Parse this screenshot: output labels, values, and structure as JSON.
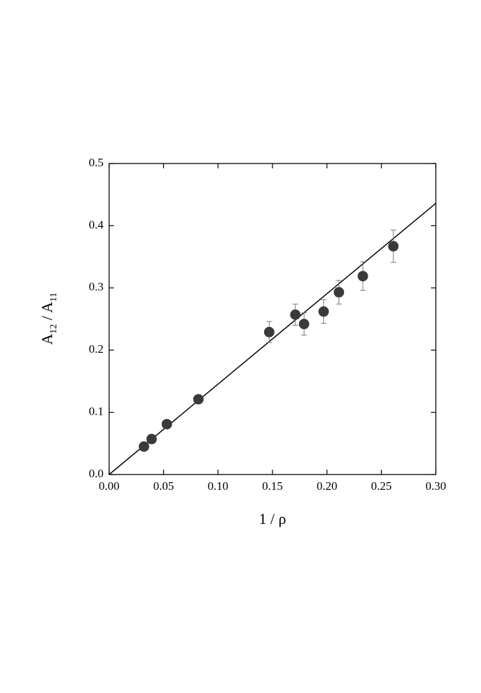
{
  "chart_data": {
    "type": "scatter",
    "x_label": "1 / ρ",
    "y_label": [
      "A",
      "12",
      " / A",
      "11"
    ],
    "xlim": [
      0,
      0.3
    ],
    "ylim": [
      0,
      0.5
    ],
    "xticks": [
      {
        "value": 0,
        "label": "0.00"
      },
      {
        "value": 0.05,
        "label": "0.05"
      },
      {
        "value": 0.1,
        "label": "0.10"
      },
      {
        "value": 0.15,
        "label": "0.15"
      },
      {
        "value": 0.2,
        "label": "0.20"
      },
      {
        "value": 0.25,
        "label": "0.25"
      },
      {
        "value": 0.3,
        "label": "0.30"
      }
    ],
    "yticks": [
      {
        "value": 0,
        "label": "0.0"
      },
      0.1,
      0.2,
      0.3,
      0.4,
      0.5
    ],
    "series": [
      {
        "color": "#3a3a3a",
        "x": [
          0.032,
          0.039,
          0.053,
          0.082,
          0.147,
          0.171,
          0.179,
          0.197,
          0.211,
          0.233,
          0.261
        ],
        "values": [
          0.045,
          0.057,
          0.081,
          0.121,
          0.229,
          0.257,
          0.242,
          0.262,
          0.293,
          0.319,
          0.367
        ],
        "errors": [
          null,
          null,
          null,
          null,
          0.017,
          0.017,
          0.018,
          0.019,
          0.019,
          0.023,
          0.026
        ],
        "error_color": "#777777"
      }
    ],
    "fit_line": {
      "color": "#000000",
      "x": [
        0,
        0.3
      ],
      "values": [
        0,
        0.436
      ]
    }
  }
}
